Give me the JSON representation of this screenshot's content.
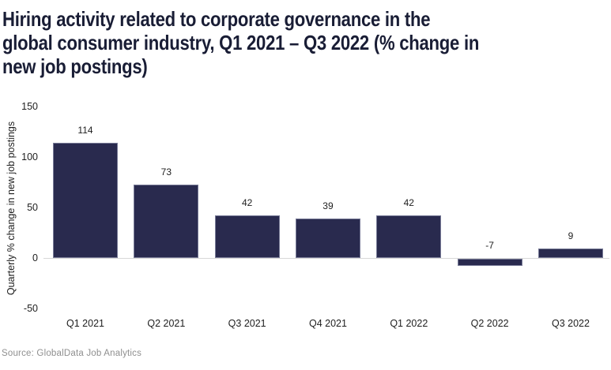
{
  "header": {
    "title_lines": [
      "Hiring activity related to corporate governance in the",
      "global consumer industry, Q1 2021 – Q3 2022 (% change in",
      "new job postings)"
    ]
  },
  "chart_data": {
    "type": "bar",
    "title": "Hiring activity related to corporate governance in the global consumer industry, Q1 2021 – Q3 2022 (% change in new job postings)",
    "categories": [
      "Q1 2021",
      "Q2 2021",
      "Q3 2021",
      "Q4 2021",
      "Q1 2022",
      "Q2 2022",
      "Q3 2022"
    ],
    "values": [
      114,
      73,
      42,
      39,
      42,
      -7,
      9
    ],
    "data_labels": [
      "114",
      "73",
      "42",
      "39",
      "42",
      "-7",
      "9"
    ],
    "xlabel": "",
    "ylabel": "Quarterly % change in new job postings",
    "yticks": [
      150,
      100,
      50,
      0,
      -50
    ],
    "ylim": [
      -50,
      150
    ],
    "grid": false,
    "legend_position": "none",
    "bar_color": "#292a4e",
    "axis_line_color": "#d8d8d8",
    "title_color": "#191d35",
    "label_color": "#1e1e1e"
  },
  "footer": {
    "source": "Source: GlobalData Job Analytics"
  }
}
